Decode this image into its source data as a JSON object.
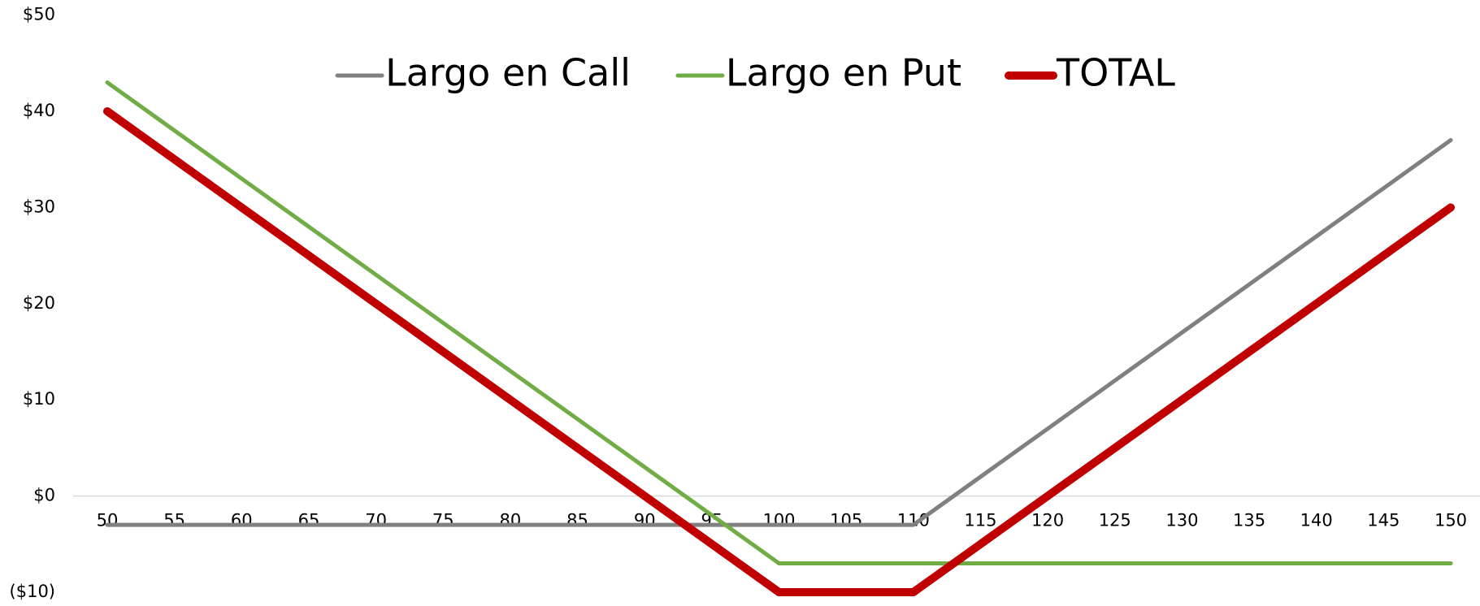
{
  "chart_data": {
    "type": "line",
    "categories": [
      50,
      55,
      60,
      65,
      70,
      75,
      80,
      85,
      90,
      95,
      100,
      105,
      110,
      115,
      120,
      125,
      130,
      135,
      140,
      145,
      150
    ],
    "series": [
      {
        "name": "Largo en Call",
        "color": "#808080",
        "values": [
          -3,
          -3,
          -3,
          -3,
          -3,
          -3,
          -3,
          -3,
          -3,
          -3,
          -3,
          -3,
          -3,
          2,
          7,
          12,
          17,
          22,
          27,
          32,
          37
        ]
      },
      {
        "name": "Largo en Put",
        "color": "#70ad47",
        "values": [
          43,
          38,
          33,
          28,
          23,
          18,
          13,
          8,
          3,
          -2,
          -7,
          -7,
          -7,
          -7,
          -7,
          -7,
          -7,
          -7,
          -7,
          -7,
          -7
        ]
      },
      {
        "name": "TOTAL",
        "color": "#c00000",
        "values": [
          40,
          35,
          30,
          25,
          20,
          15,
          10,
          5,
          0,
          -5,
          -10,
          -10,
          -10,
          -5,
          0,
          5,
          10,
          15,
          20,
          25,
          30
        ]
      }
    ],
    "ylim": [
      -10,
      50
    ],
    "yticks": [
      {
        "value": -10,
        "label": "($10)"
      },
      {
        "value": 0,
        "label": "$0"
      },
      {
        "value": 10,
        "label": "$10"
      },
      {
        "value": 20,
        "label": "$20"
      },
      {
        "value": 30,
        "label": "$30"
      },
      {
        "value": 40,
        "label": "$40"
      },
      {
        "value": 50,
        "label": "$50"
      }
    ],
    "negative_label_color": "#ff0000",
    "legend": "top"
  }
}
